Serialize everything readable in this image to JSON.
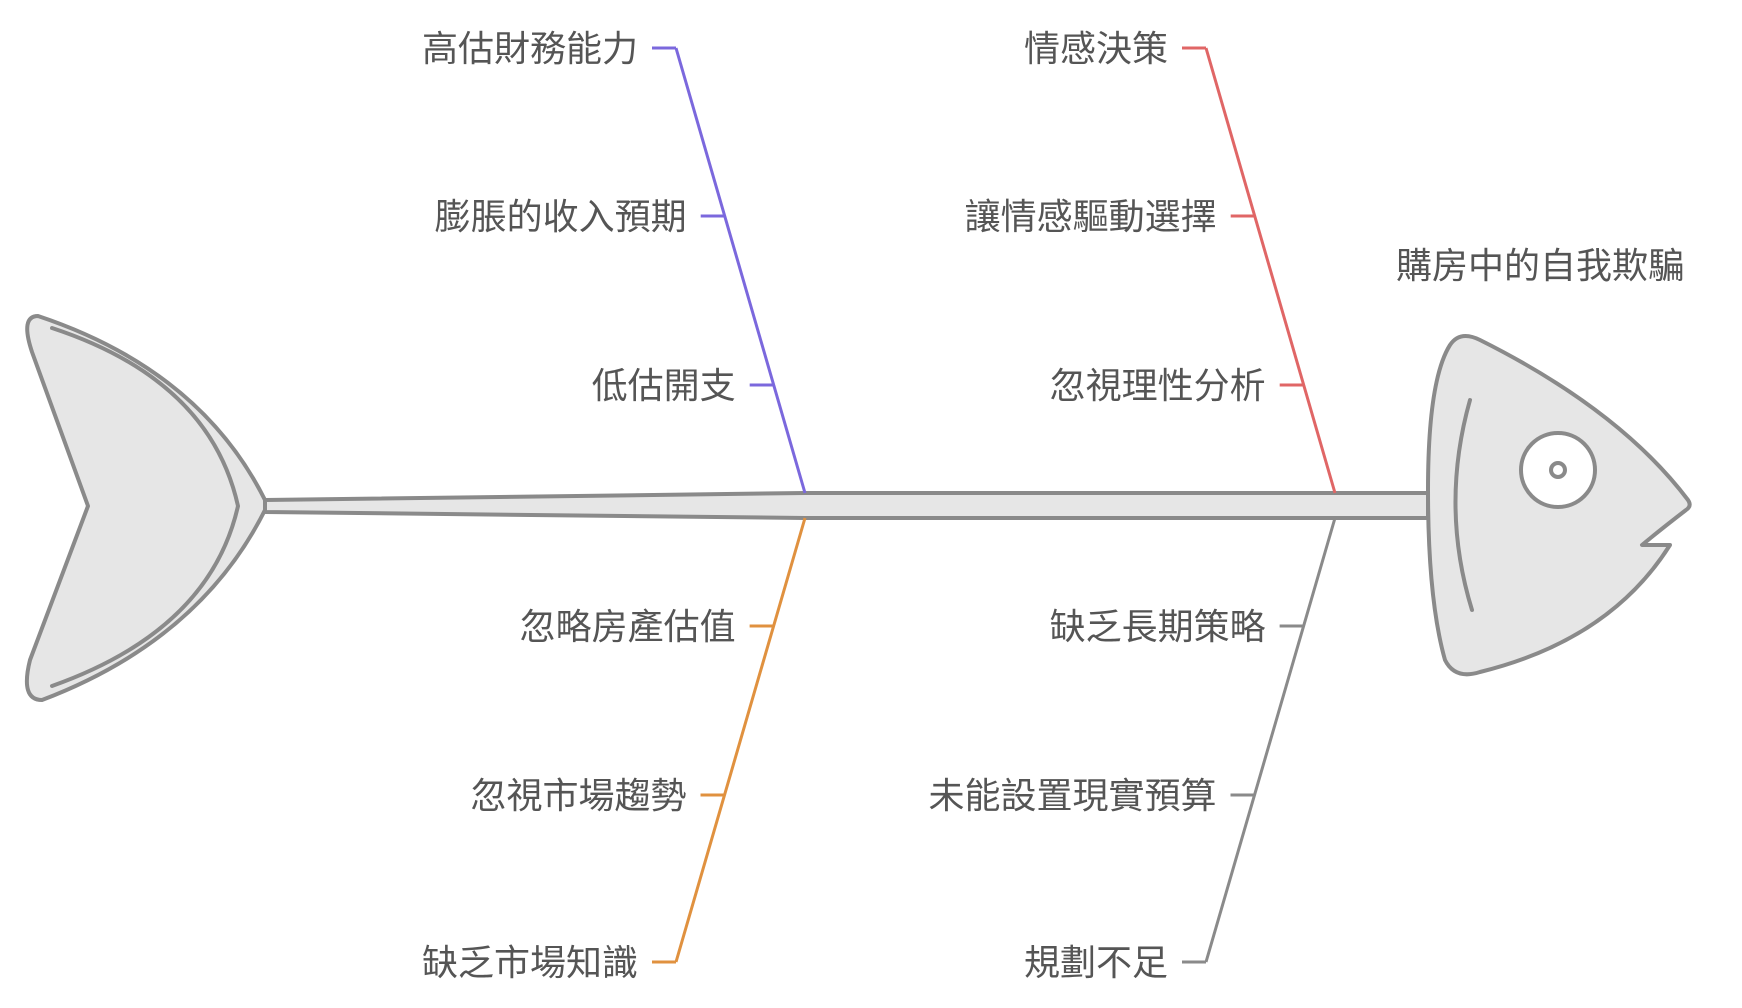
{
  "title": "購房中的自我欺騙",
  "colors": {
    "purple": "#7b68dd",
    "red": "#e06666",
    "orange": "#e0913f",
    "gray": "#8a8a8a"
  },
  "categories": [
    {
      "id": "purple",
      "color": "#7b68dd",
      "items": [
        "高估財務能力",
        "膨脹的收入預期",
        "低估開支"
      ]
    },
    {
      "id": "red",
      "color": "#e06666",
      "items": [
        "情感決策",
        "讓情感驅動選擇",
        "忽視理性分析"
      ]
    },
    {
      "id": "orange",
      "color": "#e0913f",
      "items": [
        "忽略房產估值",
        "忽視市場趨勢",
        "缺乏市場知識"
      ]
    },
    {
      "id": "gray",
      "color": "#8a8a8a",
      "items": [
        "缺乏長期策略",
        "未能設置現實預算",
        "規劃不足"
      ]
    }
  ]
}
